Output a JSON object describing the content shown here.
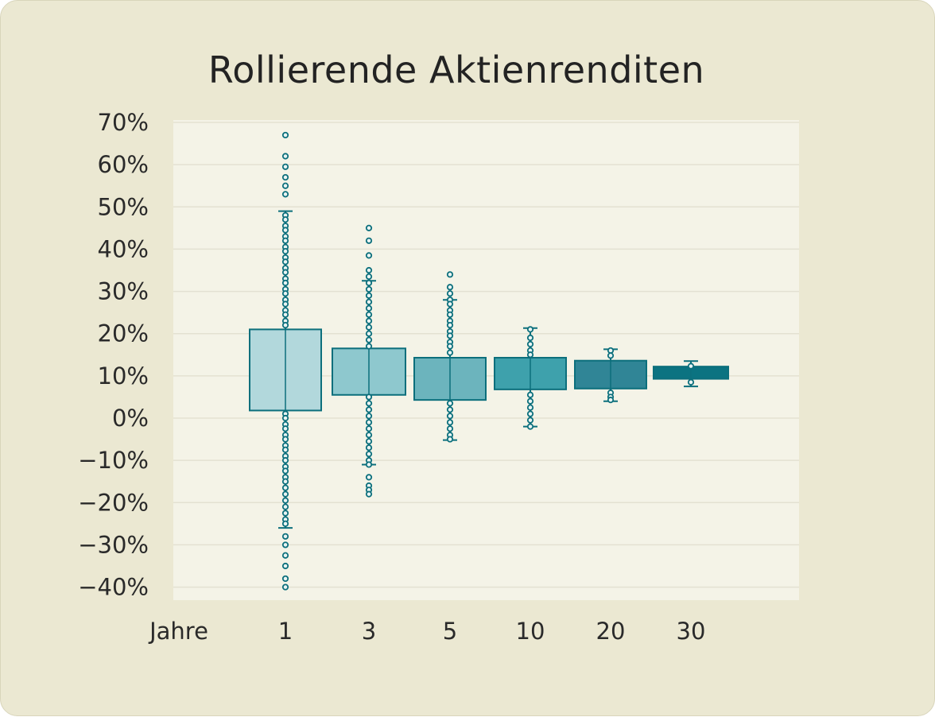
{
  "chart_data": {
    "type": "box",
    "title": "Rollierende Aktienrenditen",
    "xlabel": "Jahre",
    "categories": [
      "1",
      "3",
      "5",
      "10",
      "20",
      "30"
    ],
    "y_tick_labels": [
      "70%",
      "60%",
      "50%",
      "40%",
      "30%",
      "20%",
      "10%",
      "0%",
      "−10%",
      "−20%",
      "−30%",
      "−40%"
    ],
    "y_ticks": [
      70,
      60,
      50,
      40,
      30,
      20,
      10,
      0,
      -10,
      -20,
      -30,
      -40
    ],
    "ylim": [
      -42,
      71
    ],
    "grid": true,
    "colors": [
      "#b2d8dc",
      "#8ec8ce",
      "#6cb4bd",
      "#3ea1ac",
      "#308596",
      "#0b7381"
    ],
    "edge_color": "#0c6f7c",
    "series": [
      {
        "category": "1",
        "q1": 1.8,
        "median": 12.0,
        "q3": 21.0,
        "whisker_low": -26.0,
        "whisker_high": 49.0,
        "points": [
          67,
          62,
          59.5,
          57,
          55,
          53,
          48,
          47,
          45.5,
          44.5,
          43,
          42,
          40.5,
          39.5,
          38,
          37,
          35.5,
          34.5,
          33,
          32,
          30.5,
          29.5,
          28,
          27,
          25.5,
          24.5,
          23,
          22,
          1,
          0,
          -1.5,
          -2.5,
          -4,
          -5,
          -6.5,
          -7.5,
          -9,
          -10,
          -11.5,
          -12.5,
          -14,
          -15,
          -16.5,
          -18,
          -19.5,
          -21,
          -22.5,
          -24,
          -25,
          -28,
          -30,
          -32.5,
          -35,
          -38,
          -40
        ]
      },
      {
        "category": "3",
        "q1": 5.5,
        "median": 11.0,
        "q3": 16.5,
        "whisker_low": -11.0,
        "whisker_high": 32.5,
        "points": [
          45,
          42,
          38.5,
          35,
          33.5,
          32,
          30.5,
          29,
          27.5,
          26,
          24.5,
          23,
          21.5,
          20,
          18.5,
          17,
          5,
          3.5,
          2,
          0.5,
          -1,
          -2.5,
          -4,
          -5.5,
          -7,
          -8.5,
          -10,
          -11,
          -14,
          -16,
          -17,
          -18
        ]
      },
      {
        "category": "5",
        "q1": 4.3,
        "median": 9.8,
        "q3": 14.3,
        "whisker_low": -5.2,
        "whisker_high": 28.0,
        "points": [
          34,
          31,
          29.5,
          28,
          27,
          25.5,
          24.5,
          23,
          22,
          20.5,
          19.5,
          18,
          17,
          15.5,
          3.5,
          2,
          0.5,
          -1,
          -2.5,
          -4,
          -5
        ]
      },
      {
        "category": "10",
        "q1": 6.8,
        "median": 10.0,
        "q3": 14.3,
        "whisker_low": -2.0,
        "whisker_high": 21.3,
        "points": [
          21,
          19,
          17.5,
          16,
          15,
          5.5,
          4,
          2.5,
          1,
          -0.5,
          -2
        ]
      },
      {
        "category": "20",
        "q1": 7.0,
        "median": 10.8,
        "q3": 13.6,
        "whisker_low": 4.0,
        "whisker_high": 16.3,
        "points": [
          16,
          14.8,
          6,
          5,
          4.3
        ]
      },
      {
        "category": "30",
        "q1": 9.3,
        "median": 11.2,
        "q3": 12.2,
        "whisker_low": 7.5,
        "whisker_high": 13.5,
        "points": [
          12.3,
          8.5
        ]
      }
    ]
  }
}
